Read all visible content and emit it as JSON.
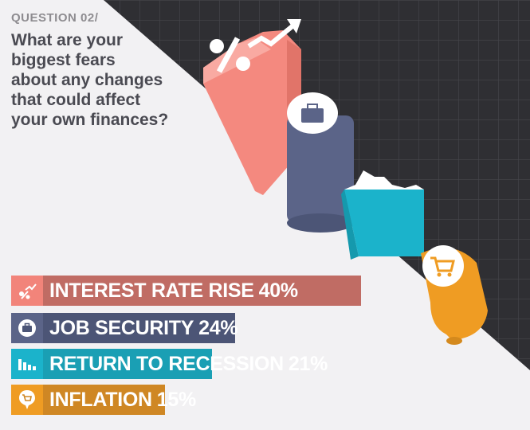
{
  "header": {
    "question_label": "QUESTION 02/",
    "title_lines": [
      "What are your",
      "biggest fears",
      "about any changes",
      "that could affect",
      "your own finances?"
    ]
  },
  "chart_data": {
    "type": "bar",
    "orientation": "horizontal",
    "categories": [
      "INTEREST RATE RISE",
      "JOB SECURITY",
      "RETURN TO RECESSION",
      "INFLATION"
    ],
    "values": [
      40,
      24,
      21,
      15
    ],
    "unit": "%",
    "colors": [
      "#f2847a",
      "#5b6488",
      "#1bb3cb",
      "#ef9c23"
    ],
    "bar_colors": [
      "#c06c64",
      "#4c5576",
      "#1a9fb4",
      "#cf8724"
    ],
    "icons": [
      "percent-trend-icon",
      "briefcase-icon",
      "declining-bars-icon",
      "shopping-cart-icon"
    ]
  },
  "theme": {
    "background": "#f2f1f3",
    "dark_panel": "#2f2f33",
    "grid_line": "#454549"
  }
}
